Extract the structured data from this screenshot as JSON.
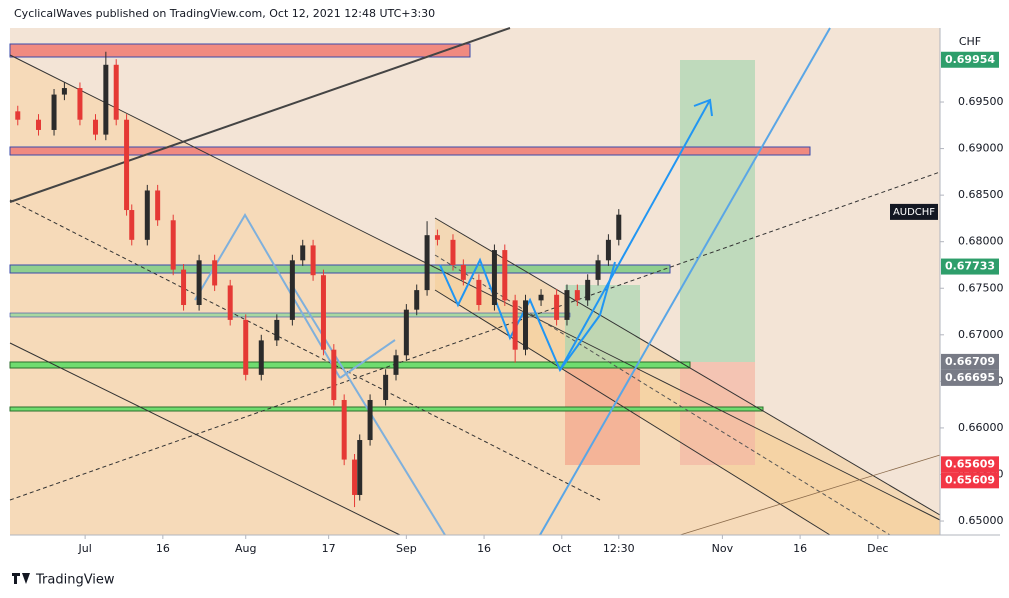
{
  "chart_data": {
    "type": "candlestick",
    "header": "CyclicalWaves published on TradingView.com, Oct 12, 2021 12:48 UTC+3:30",
    "footer": "TradingView",
    "currency": "CHF",
    "symbol": "AUDCHF",
    "symbol_price": 0.6832,
    "up_color": "#2b2b2b",
    "down_color": "#e53935",
    "xlim": [
      -14.5,
      165
    ],
    "ylim": [
      0.6485,
      0.70295
    ],
    "xticks": [
      {
        "value": 0,
        "label": "Jul"
      },
      {
        "value": 15,
        "label": "16"
      },
      {
        "value": 31,
        "label": "Aug"
      },
      {
        "value": 47,
        "label": "17"
      },
      {
        "value": 62,
        "label": "Sep"
      },
      {
        "value": 77,
        "label": "16"
      },
      {
        "value": 92,
        "label": "Oct"
      },
      {
        "value": 103,
        "label": "12:30"
      },
      {
        "value": 123,
        "label": "Nov"
      },
      {
        "value": 138,
        "label": "16"
      },
      {
        "value": 153,
        "label": "Dec"
      }
    ],
    "yticks": [
      {
        "value": 0.65,
        "label": "0.65000"
      },
      {
        "value": 0.655,
        "label": "0.65500"
      },
      {
        "value": 0.66,
        "label": "0.66000"
      },
      {
        "value": 0.665,
        "label": "0.66500"
      },
      {
        "value": 0.67,
        "label": "0.67000"
      },
      {
        "value": 0.675,
        "label": "0.67500"
      },
      {
        "value": 0.68,
        "label": "0.68000"
      },
      {
        "value": 0.685,
        "label": "0.68500"
      },
      {
        "value": 0.69,
        "label": "0.69000"
      },
      {
        "value": 0.695,
        "label": "0.69500"
      }
    ],
    "price_labels": [
      {
        "value": 0.69954,
        "label": "0.69954",
        "color": "#2e9e6b"
      },
      {
        "value": 0.67733,
        "label": "0.67733",
        "color": "#2e9e6b"
      },
      {
        "value": 0.66709,
        "label": "0.66709",
        "color": "#787b86"
      },
      {
        "value": 0.66695,
        "label": "0.66695",
        "color": "#787b86"
      },
      {
        "value": 0.65609,
        "label": "0.65609",
        "color": "#f23645"
      },
      {
        "value": 0.65609,
        "label": "0.65609",
        "color": "#f23645"
      }
    ],
    "candles": {
      "x": [
        -13,
        -9,
        -6,
        -4,
        -1,
        2,
        4,
        6,
        8,
        9,
        12,
        14,
        17,
        19,
        22,
        25,
        28,
        31,
        34,
        37,
        40,
        42,
        44,
        46,
        48,
        50,
        52,
        53,
        55,
        58,
        60,
        62,
        64,
        66,
        68,
        71,
        73,
        76,
        79,
        81,
        83,
        85,
        88,
        91,
        93,
        95,
        97,
        99,
        101,
        103
      ],
      "open": [
        0.694,
        0.6931,
        0.692,
        0.6958,
        0.6965,
        0.6931,
        0.6915,
        0.699,
        0.6931,
        0.6834,
        0.6802,
        0.6855,
        0.6823,
        0.677,
        0.6732,
        0.678,
        0.6753,
        0.6716,
        0.6657,
        0.6694,
        0.6716,
        0.678,
        0.6796,
        0.6764,
        0.6684,
        0.663,
        0.6566,
        0.6528,
        0.6587,
        0.663,
        0.6657,
        0.6678,
        0.6727,
        0.6748,
        0.6807,
        0.6802,
        0.6775,
        0.6759,
        0.6732,
        0.6791,
        0.6737,
        0.6684,
        0.6737,
        0.6743,
        0.6716,
        0.6748,
        0.6737,
        0.6759,
        0.678,
        0.6802
      ],
      "high": [
        0.6946,
        0.6937,
        0.6964,
        0.6971,
        0.6971,
        0.6937,
        0.7004,
        0.6996,
        0.6937,
        0.684,
        0.6861,
        0.6861,
        0.6829,
        0.6776,
        0.6786,
        0.6786,
        0.6759,
        0.6722,
        0.67,
        0.6722,
        0.6786,
        0.6802,
        0.6802,
        0.677,
        0.669,
        0.6636,
        0.6572,
        0.6593,
        0.6636,
        0.6663,
        0.6684,
        0.6733,
        0.6754,
        0.6822,
        0.6813,
        0.6808,
        0.6781,
        0.6765,
        0.6797,
        0.6797,
        0.6743,
        0.6743,
        0.6749,
        0.6749,
        0.6754,
        0.6754,
        0.6765,
        0.6786,
        0.6808,
        0.6835
      ],
      "low": [
        0.6925,
        0.6914,
        0.6914,
        0.6952,
        0.6925,
        0.6909,
        0.6909,
        0.6925,
        0.6828,
        0.6796,
        0.6796,
        0.6817,
        0.6764,
        0.6726,
        0.6726,
        0.6747,
        0.671,
        0.6651,
        0.6651,
        0.6688,
        0.671,
        0.6774,
        0.6758,
        0.6678,
        0.6624,
        0.656,
        0.6515,
        0.6522,
        0.6581,
        0.6624,
        0.6651,
        0.6672,
        0.6721,
        0.6742,
        0.6796,
        0.6769,
        0.6753,
        0.6726,
        0.6726,
        0.6731,
        0.667,
        0.6678,
        0.6731,
        0.671,
        0.671,
        0.6731,
        0.6731,
        0.6753,
        0.6774,
        0.6796
      ],
      "close": [
        0.6931,
        0.692,
        0.6958,
        0.6965,
        0.6931,
        0.6915,
        0.699,
        0.6931,
        0.6834,
        0.6802,
        0.6855,
        0.6823,
        0.677,
        0.6732,
        0.678,
        0.6753,
        0.6716,
        0.6657,
        0.6694,
        0.6716,
        0.678,
        0.6796,
        0.6764,
        0.6684,
        0.663,
        0.6566,
        0.6528,
        0.6587,
        0.663,
        0.6657,
        0.6678,
        0.6727,
        0.6748,
        0.6807,
        0.6802,
        0.6775,
        0.6759,
        0.6732,
        0.6791,
        0.6737,
        0.6684,
        0.6737,
        0.6743,
        0.6716,
        0.6748,
        0.6737,
        0.6759,
        0.678,
        0.6802,
        0.6829
      ]
    }
  }
}
